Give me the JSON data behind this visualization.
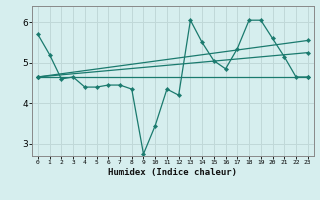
{
  "title": "",
  "xlabel": "Humidex (Indice chaleur)",
  "ylabel": "",
  "background_color": "#d6eeee",
  "grid_color": "#c0d8d8",
  "line_color": "#1a7a6e",
  "xlim": [
    -0.5,
    23.5
  ],
  "ylim": [
    2.7,
    6.4
  ],
  "yticks": [
    3,
    4,
    5,
    6
  ],
  "xticks": [
    0,
    1,
    2,
    3,
    4,
    5,
    6,
    7,
    8,
    9,
    10,
    11,
    12,
    13,
    14,
    15,
    16,
    17,
    18,
    19,
    20,
    21,
    22,
    23
  ],
  "series": [
    {
      "x": [
        0,
        1,
        2,
        3,
        4,
        5,
        6,
        7,
        8,
        9,
        10,
        11,
        12,
        13,
        14,
        15,
        16,
        17,
        18,
        19,
        20,
        21,
        22,
        23
      ],
      "y": [
        5.7,
        5.2,
        4.6,
        4.65,
        4.4,
        4.4,
        4.45,
        4.45,
        4.35,
        2.75,
        3.45,
        4.35,
        4.2,
        6.05,
        5.5,
        5.05,
        4.85,
        5.35,
        6.05,
        6.05,
        5.6,
        5.15,
        4.65,
        4.65
      ]
    },
    {
      "x": [
        0,
        23
      ],
      "y": [
        4.65,
        4.65
      ]
    },
    {
      "x": [
        0,
        23
      ],
      "y": [
        4.65,
        5.25
      ]
    },
    {
      "x": [
        0,
        23
      ],
      "y": [
        4.65,
        5.55
      ]
    }
  ]
}
